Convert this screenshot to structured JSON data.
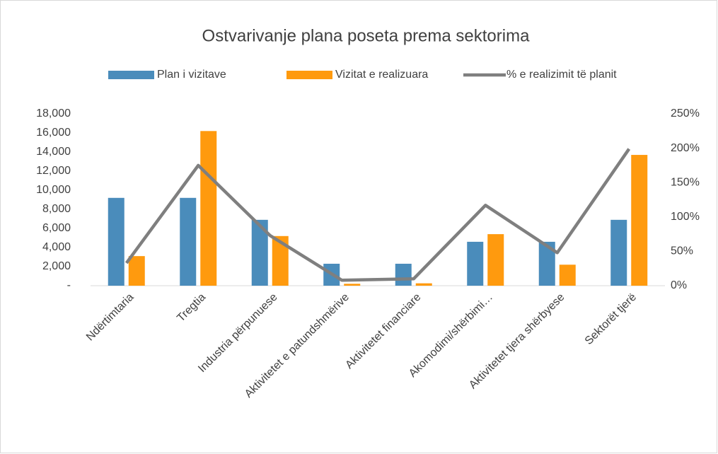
{
  "chart_data": {
    "type": "bar_line",
    "title": "Ostvarivanje plana poseta prema sektorima",
    "categories": [
      "Ndërtimtaria",
      "Tregtia",
      "Industria përpunuese",
      "Aktivitetet e patundshmërive",
      "Aktivitetet financiare",
      "Akomodimi/shërbimi…",
      "Aktivitetet tjera shërbyese",
      "Sektorët tjerë"
    ],
    "series": [
      {
        "name": "Plan i vizitave",
        "type": "bar",
        "color": "#4a8cbb",
        "values": [
          9200,
          9200,
          6900,
          2300,
          2300,
          4600,
          4600,
          6900
        ]
      },
      {
        "name": "Vizitat e realizuara",
        "type": "bar",
        "color": "#ff9a0e",
        "values": [
          3100,
          16200,
          5200,
          200,
          250,
          5400,
          2200,
          13700
        ]
      },
      {
        "name": "% e realizimit të planit",
        "type": "line",
        "axis": "y2",
        "color": "#7f7f7f",
        "values": [
          33,
          175,
          73,
          8,
          10,
          117,
          48,
          199
        ]
      }
    ],
    "ylim": [
      0,
      18000
    ],
    "yticks": [
      {
        "value": 0,
        "label": "-"
      },
      {
        "value": 2000,
        "label": "2,000"
      },
      {
        "value": 4000,
        "label": "4,000"
      },
      {
        "value": 6000,
        "label": "6,000"
      },
      {
        "value": 8000,
        "label": "8,000"
      },
      {
        "value": 10000,
        "label": "10,000"
      },
      {
        "value": 12000,
        "label": "12,000"
      },
      {
        "value": 14000,
        "label": "14,000"
      },
      {
        "value": 16000,
        "label": "16,000"
      },
      {
        "value": 18000,
        "label": "18,000"
      }
    ],
    "y2lim": [
      0,
      250
    ],
    "y2ticks": [
      {
        "value": 0,
        "label": "0%"
      },
      {
        "value": 50,
        "label": "50%"
      },
      {
        "value": 100,
        "label": "100%"
      },
      {
        "value": 150,
        "label": "150%"
      },
      {
        "value": 200,
        "label": "200%"
      },
      {
        "value": 250,
        "label": "250%"
      }
    ],
    "grid": false,
    "legend": "top"
  }
}
